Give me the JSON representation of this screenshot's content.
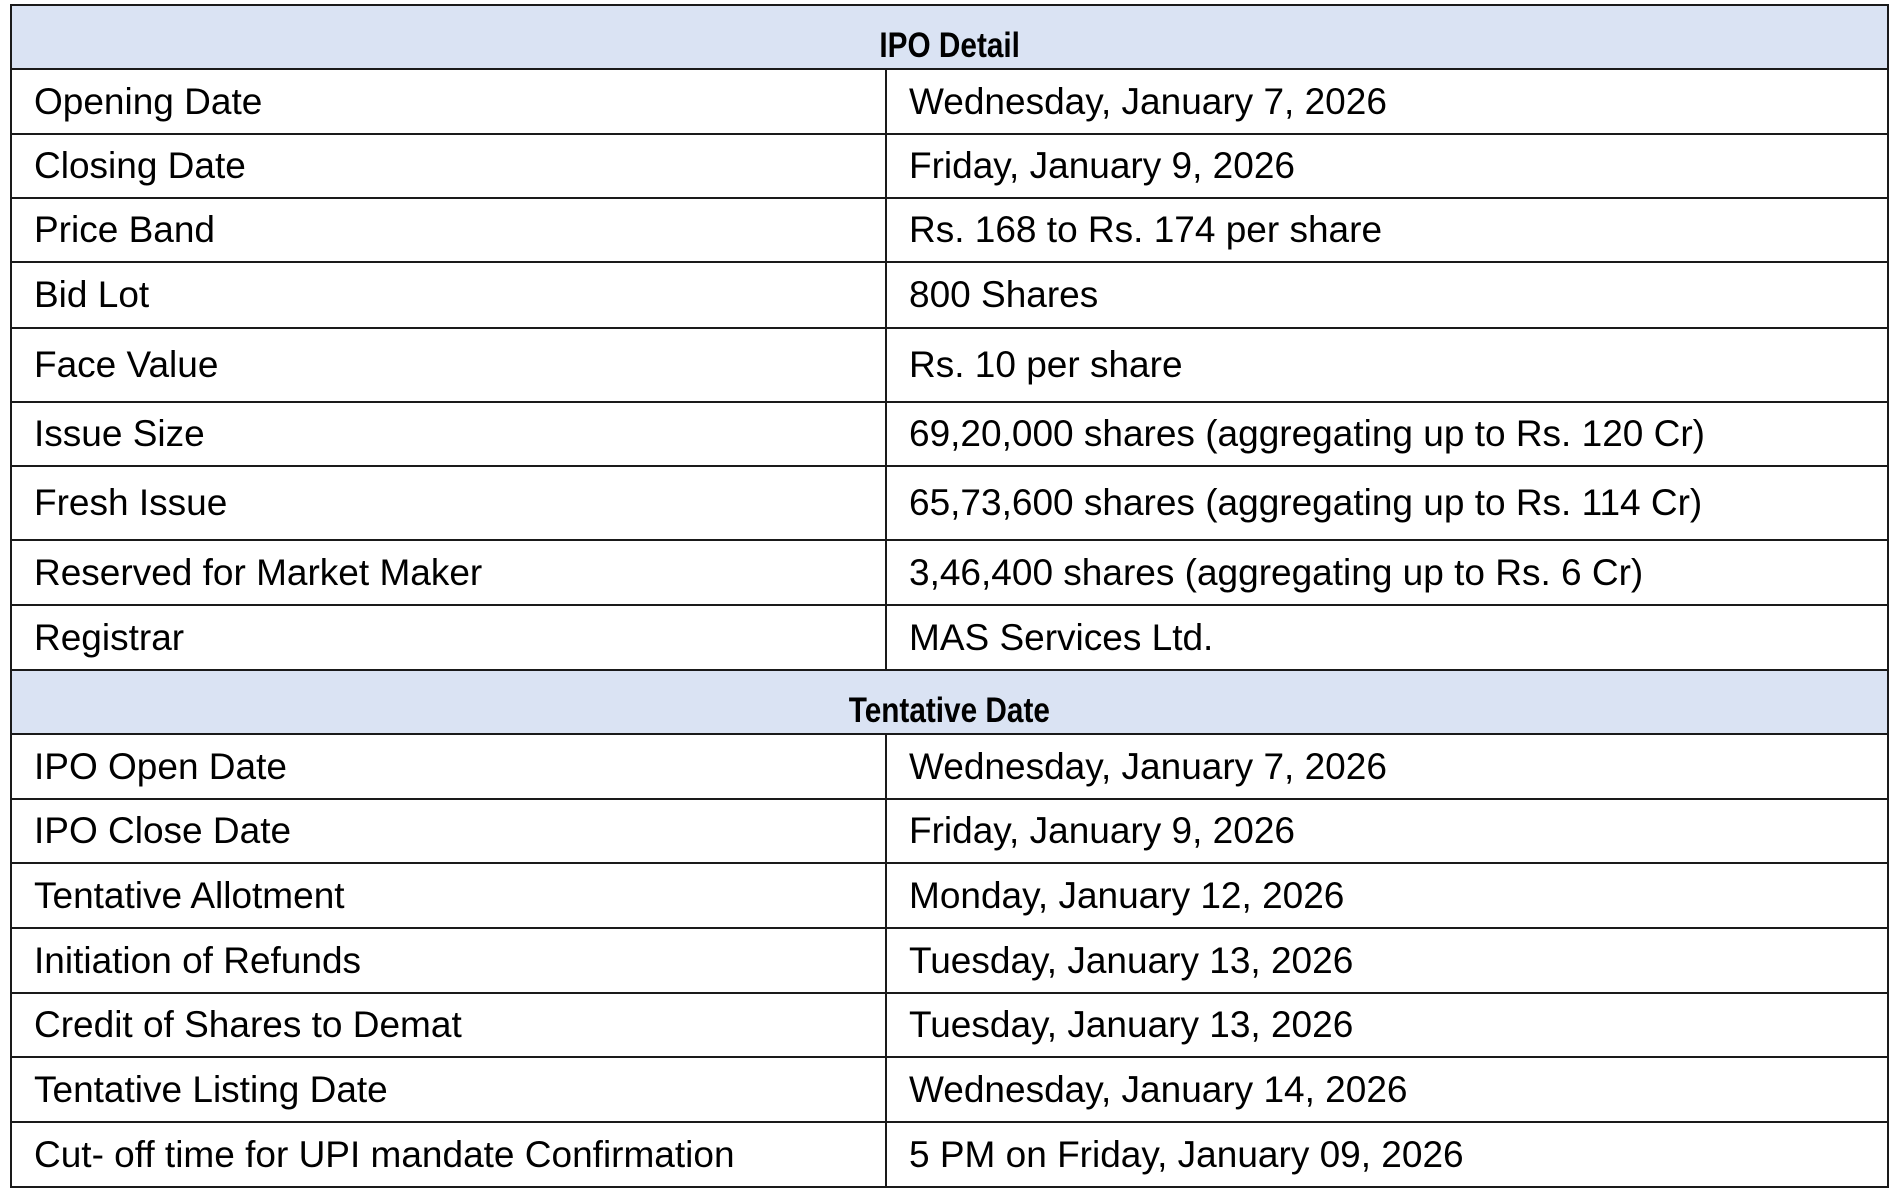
{
  "sections": [
    {
      "title": "IPO Detail",
      "rows": [
        {
          "label": "Opening Date",
          "value": "Wednesday, January 7, 2026"
        },
        {
          "label": "Closing Date",
          "value": "Friday, January 9, 2026"
        },
        {
          "label": "Price Band",
          "value": "Rs. 168 to Rs. 174 per share"
        },
        {
          "label": "Bid Lot",
          "value": "800 Shares"
        },
        {
          "label": "Face Value",
          "value": "Rs. 10 per share"
        },
        {
          "label": "Issue Size",
          "value": "69,20,000 shares (aggregating up to Rs. 120 Cr)"
        },
        {
          "label": "Fresh Issue",
          "value": "65,73,600 shares (aggregating up to Rs. 114 Cr)"
        },
        {
          "label": "Reserved for Market Maker",
          "value": "3,46,400 shares (aggregating up to Rs. 6 Cr)"
        },
        {
          "label": "Registrar",
          "value": "MAS Services Ltd."
        }
      ]
    },
    {
      "title": "Tentative Date",
      "rows": [
        {
          "label": "IPO Open Date",
          "value": "Wednesday, January 7, 2026"
        },
        {
          "label": "IPO Close Date",
          "value": "Friday, January 9, 2026"
        },
        {
          "label": "Tentative Allotment",
          "value": "Monday, January 12, 2026"
        },
        {
          "label": "Initiation of Refunds",
          "value": "Tuesday, January 13, 2026"
        },
        {
          "label": "Credit of Shares to Demat",
          "value": "Tuesday, January 13, 2026"
        },
        {
          "label": "Tentative Listing Date",
          "value": "Wednesday, January 14, 2026"
        },
        {
          "label": "Cut- off time for UPI mandate Confirmation",
          "value": "5 PM on Friday, January 09, 2026"
        }
      ]
    }
  ],
  "colors": {
    "header_bg": "#dae3f3",
    "border": "#1a1a1a"
  }
}
